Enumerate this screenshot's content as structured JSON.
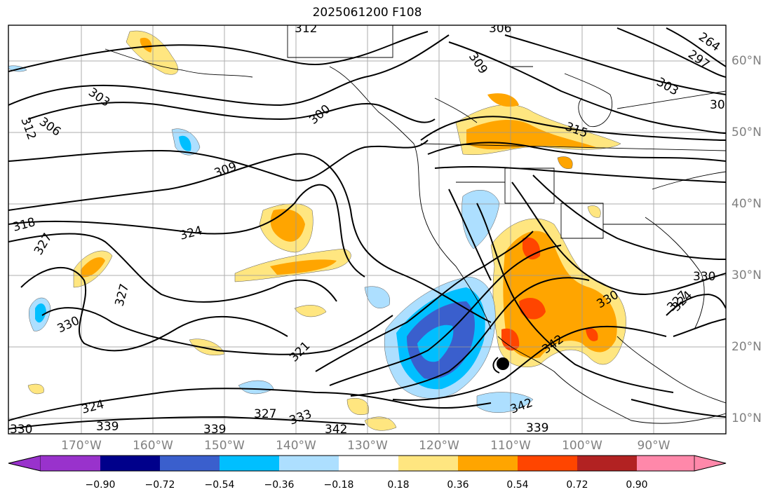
{
  "title": "2025061200 F108",
  "latitude_labels": [
    "60°N",
    "50°N",
    "40°N",
    "30°N",
    "20°N",
    "10°N"
  ],
  "longitude_labels": [
    "170°W",
    "160°W",
    "150°W",
    "140°W",
    "130°W",
    "120°W",
    "110°W",
    "100°W",
    "90°W"
  ],
  "contour_labels": [
    "312",
    "306",
    "309",
    "303",
    "300",
    "315",
    "306",
    "312",
    "318",
    "309",
    "324",
    "327",
    "327",
    "330",
    "321",
    "324",
    "327",
    "333",
    "339",
    "330",
    "342",
    "339",
    "339",
    "342",
    "330",
    "330",
    "327",
    "324",
    "342",
    "303",
    "297",
    "264",
    "30"
  ],
  "colorbar": {
    "ticks": [
      "−0.90",
      "−0.72",
      "−0.54",
      "−0.36",
      "−0.18",
      "0.18",
      "0.36",
      "0.54",
      "0.72",
      "0.90"
    ],
    "colors": [
      "#9932CC",
      "#00008B",
      "#3A5FCD",
      "#00BFFF",
      "#ADDFFF",
      "#FFFFFF",
      "#FFE680",
      "#FFA500",
      "#FF4500",
      "#B22222",
      "#FF88AA"
    ]
  }
}
